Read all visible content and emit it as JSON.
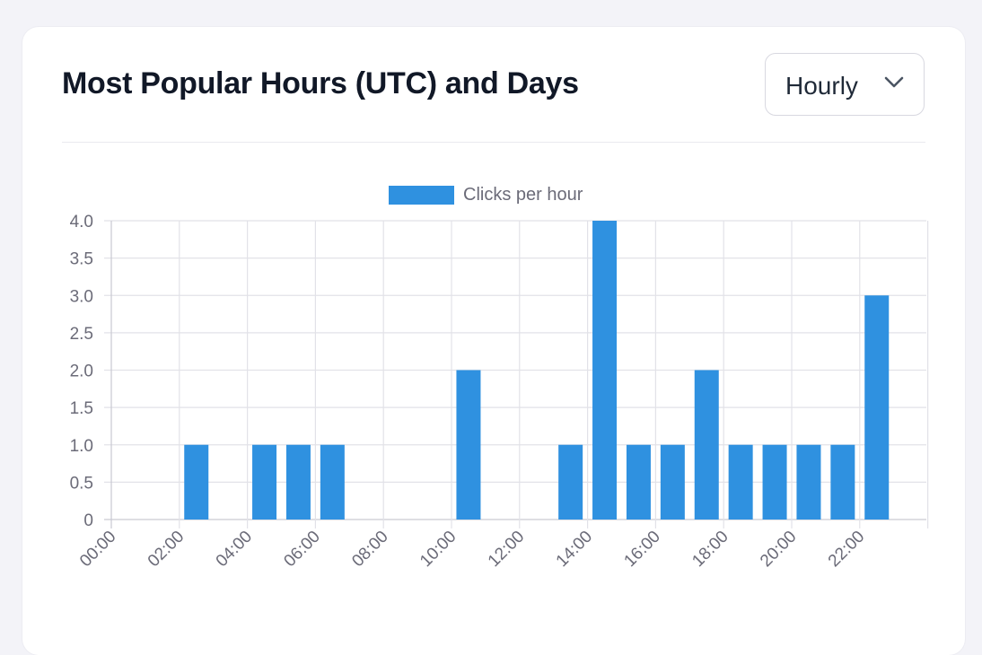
{
  "header": {
    "title": "Most Popular Hours (UTC) and Days"
  },
  "view_select": {
    "selected": "Hourly",
    "icon": "chevron-down-icon"
  },
  "colors": {
    "bar": "#2f91e0",
    "grid": "#e2e2e8",
    "tick_text": "#6b6b78",
    "background": "#f3f3f8",
    "card": "#ffffff"
  },
  "chart_data": {
    "type": "bar",
    "legend": {
      "label": "Clicks per hour",
      "position": "top-center"
    },
    "categories": [
      "00:00",
      "01:00",
      "02:00",
      "03:00",
      "04:00",
      "05:00",
      "06:00",
      "07:00",
      "08:00",
      "09:00",
      "10:00",
      "11:00",
      "12:00",
      "13:00",
      "14:00",
      "15:00",
      "16:00",
      "17:00",
      "18:00",
      "19:00",
      "20:00",
      "21:00",
      "22:00",
      "23:00"
    ],
    "x_tick_labels": [
      "00:00",
      "02:00",
      "04:00",
      "06:00",
      "08:00",
      "10:00",
      "12:00",
      "14:00",
      "16:00",
      "18:00",
      "20:00",
      "22:00"
    ],
    "series": [
      {
        "name": "Clicks per hour",
        "values": [
          0,
          0,
          1,
          0,
          1,
          1,
          1,
          0,
          0,
          0,
          2,
          0,
          0,
          1,
          4,
          1,
          1,
          2,
          1,
          1,
          1,
          1,
          3,
          0
        ]
      }
    ],
    "y_ticks": [
      "0",
      "0.5",
      "1.0",
      "1.5",
      "2.0",
      "2.5",
      "3.0",
      "3.5",
      "4.0"
    ],
    "ylim": [
      0,
      4
    ],
    "grid": true
  }
}
